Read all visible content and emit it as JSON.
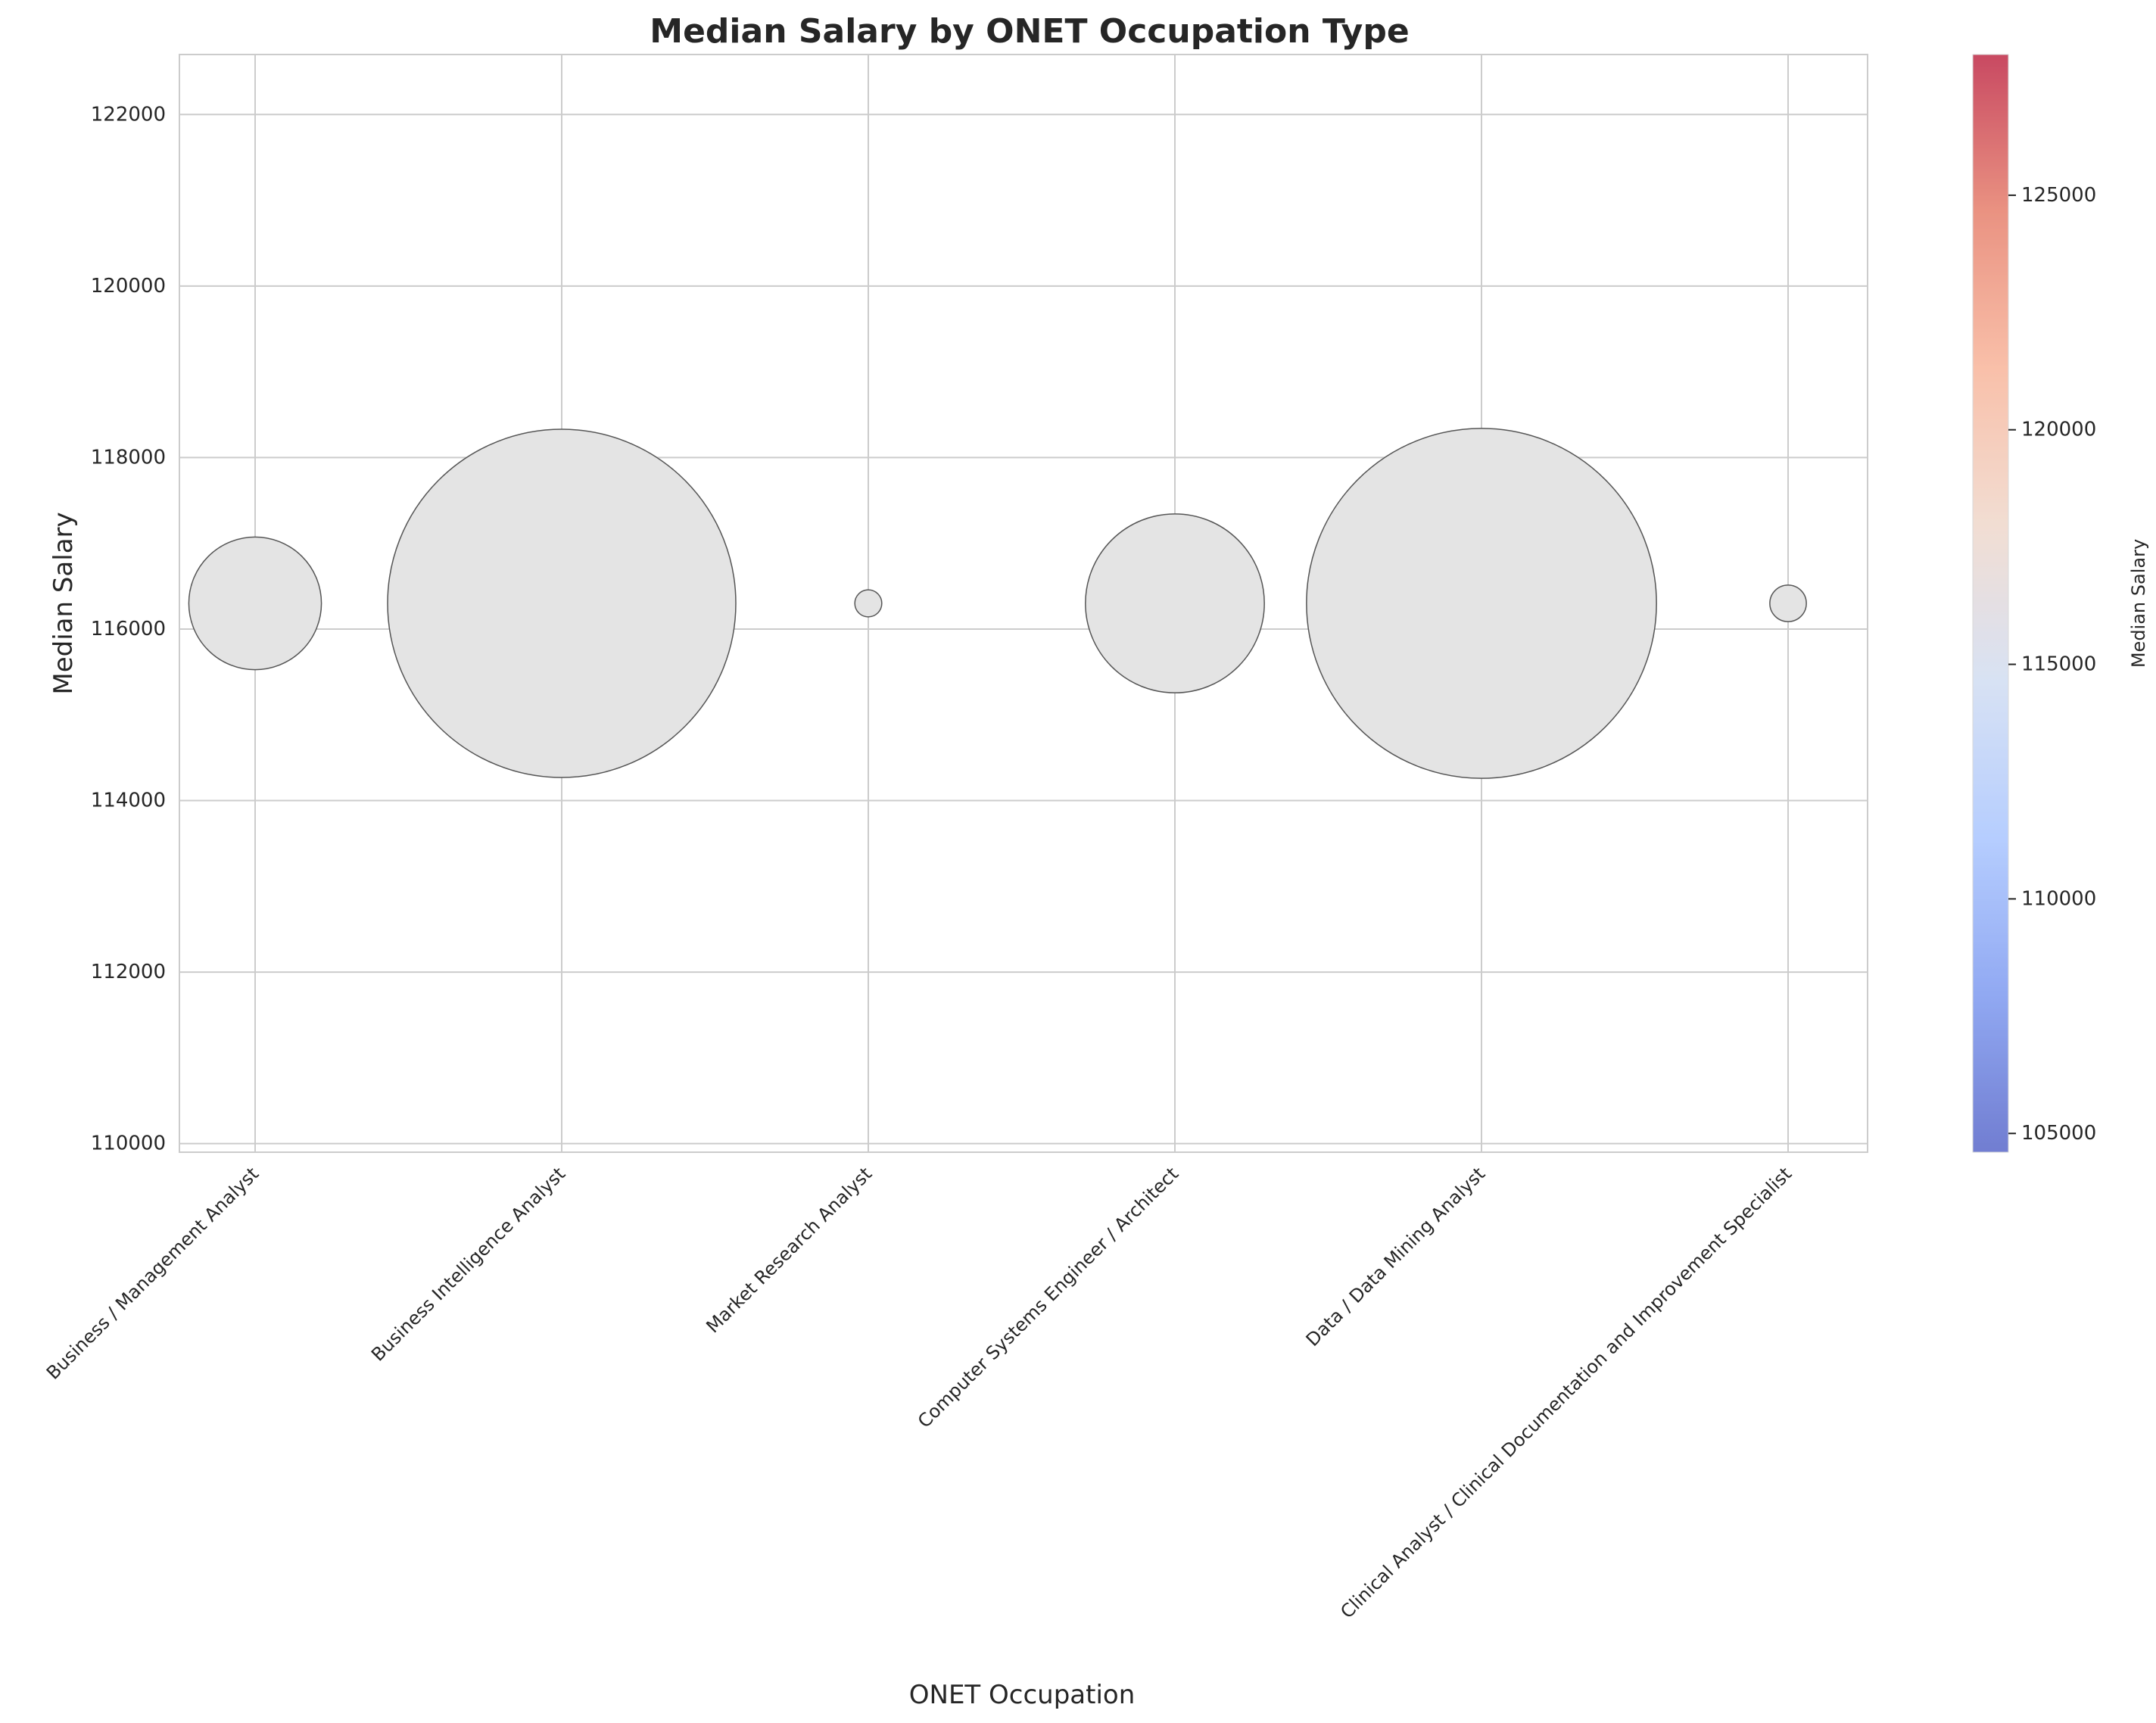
{
  "chart_data": {
    "type": "scatter",
    "title": "Median Salary by ONET Occupation Type",
    "xlabel": "ONET Occupation",
    "ylabel": "Median Salary",
    "categories": [
      "Business / Management Analyst",
      "Business Intelligence Analyst",
      "Market Research Analyst",
      "Computer Systems Engineer / Architect",
      "Data / Data Mining Analyst",
      "Clinical Analyst / Clinical Documentation and Improvement Specialist"
    ],
    "values": [
      116300,
      116300,
      116300,
      116300,
      116300,
      116300
    ],
    "bubble_size_relative": [
      0.145,
      1.0,
      0.006,
      0.264,
      1.01,
      0.011
    ],
    "ylim": [
      109900,
      122700
    ],
    "yticks": [
      110000,
      112000,
      114000,
      116000,
      118000,
      120000,
      122000
    ],
    "grid": true,
    "marker_color": "#e4e4e4",
    "marker_edge_color": "#555555",
    "colorbar": {
      "label": "Median Salary",
      "colormap": "coolwarm",
      "range": [
        104600,
        128000
      ],
      "ticks": [
        105000,
        110000,
        115000,
        120000,
        125000
      ],
      "colors": [
        "#3b4cc0",
        "#6788ee",
        "#9abbff",
        "#c9d7f0",
        "#edd1c2",
        "#f7a889",
        "#e26952",
        "#b40426"
      ]
    }
  }
}
